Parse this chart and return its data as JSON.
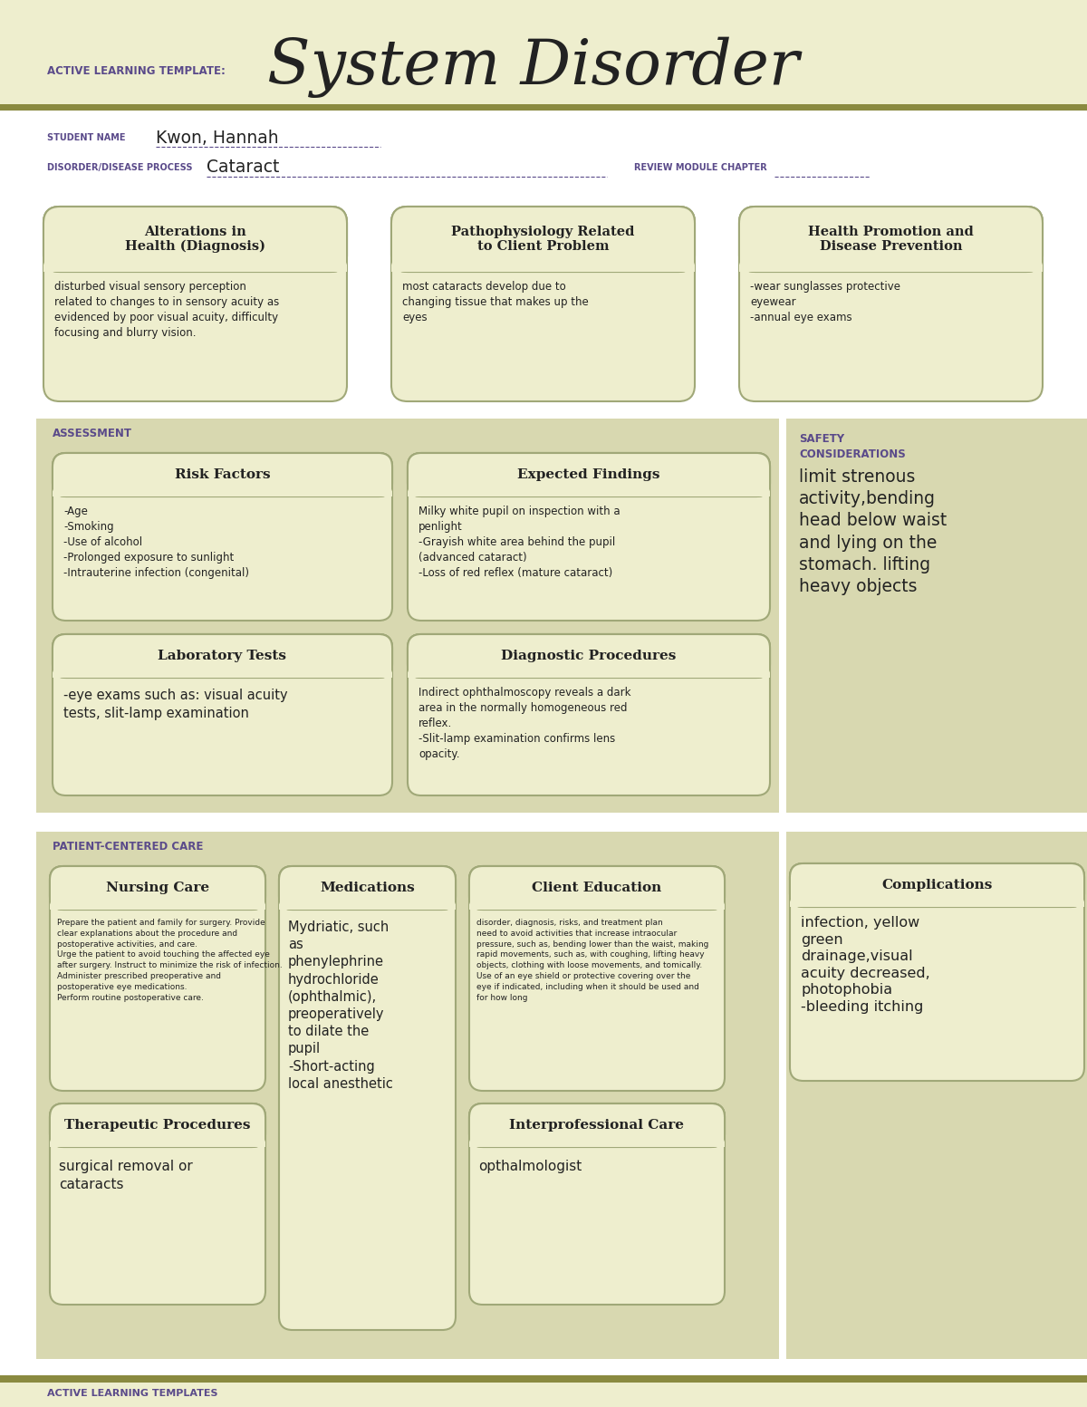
{
  "page_bg": "#ffffff",
  "header_bg": "#eeeece",
  "olive_strip": "#8a8a40",
  "section_bg": "#d8d8b0",
  "safety_bg": "#d8d8b0",
  "box_bg": "#eeeece",
  "box_border": "#a0a878",
  "purple_text": "#5a4a8a",
  "dark_text": "#222222",
  "gray_text": "#444444",
  "title_large": "System Disorder",
  "title_small": "ACTIVE LEARNING TEMPLATE:",
  "student_label": "STUDENT NAME",
  "student_name": "Kwon, Hannah",
  "disorder_label": "DISORDER/DISEASE PROCESS",
  "disorder_name": "Cataract",
  "review_label": "REVIEW MODULE CHAPTER",
  "section_assessment": "ASSESSMENT",
  "section_safety_1": "SAFETY",
  "section_safety_2": "CONSIDERATIONS",
  "section_patient": "PATIENT-CENTERED CARE",
  "section_complications": "Complications",
  "box1_title": "Alterations in\nHealth (Diagnosis)",
  "box1_body": "disturbed visual sensory perception\nrelated to changes to in sensory acuity as\nevidenced by poor visual acuity, difficulty\nfocusing and blurry vision.",
  "box2_title": "Pathophysiology Related\nto Client Problem",
  "box2_body": "most cataracts develop due to\nchanging tissue that makes up the\neyes",
  "box3_title": "Health Promotion and\nDisease Prevention",
  "box3_body": "-wear sunglasses protective\neyewear\n-annual eye exams",
  "rf_title": "Risk Factors",
  "rf_body": "-Age\n-Smoking\n-Use of alcohol\n-Prolonged exposure to sunlight\n-Intrauterine infection (congenital)",
  "ef_title": "Expected Findings",
  "ef_body": "Milky white pupil on inspection with a\npenlight\n-Grayish white area behind the pupil\n(advanced cataract)\n-Loss of red reflex (mature cataract)",
  "safety_body": "limit strenous\nactivity,bending\nhead below waist\nand lying on the\nstomach. lifting\nheavy objects",
  "lt_title": "Laboratory Tests",
  "lt_body": "-eye exams such as: visual acuity\ntests, slit-lamp examination",
  "dp_title": "Diagnostic Procedures",
  "dp_body": "Indirect ophthalmoscopy reveals a dark\narea in the normally homogeneous red\nreflex.\n-Slit-lamp examination confirms lens\nopacity.",
  "nc_title": "Nursing Care",
  "nc_body": "Prepare the patient and family for surgery. Provide\nclear explanations about the procedure and\npostoperative activities, and care.\nUrge the patient to avoid touching the affected eye\nafter surgery. Instruct to minimize the risk of infection.\nAdminister prescribed preoperative and\npostoperative eye medications.\nPerform routine postoperative care.",
  "med_title": "Medications",
  "med_body": "Mydriatic, such\nas\nphenylephrine\nhydrochloride\n(ophthalmic),\npreoperatively\nto dilate the\npupil\n-Short-acting\nlocal anesthetic",
  "ce_title": "Client Education",
  "ce_body": "disorder, diagnosis, risks, and treatment plan\nneed to avoid activities that increase intraocular\npressure, such as, bending lower than the waist, making\nrapid movements, such as, with coughing, lifting heavy\nobjects, clothing with loose movements, and tomically.\nUse of an eye shield or protective covering over the\neye if indicated, including when it should be used and\nfor how long",
  "tp_title": "Therapeutic Procedures",
  "tp_body": "surgical removal or\ncataracts",
  "ic_title": "Interprofessional Care",
  "ic_body": "opthalmologist",
  "comp_body": "infection, yellow\ngreen\ndrainage,visual\nacuity decreased,\nphotophobia\n-bleeding itching",
  "footer": "ACTIVE LEARNING TEMPLATES"
}
